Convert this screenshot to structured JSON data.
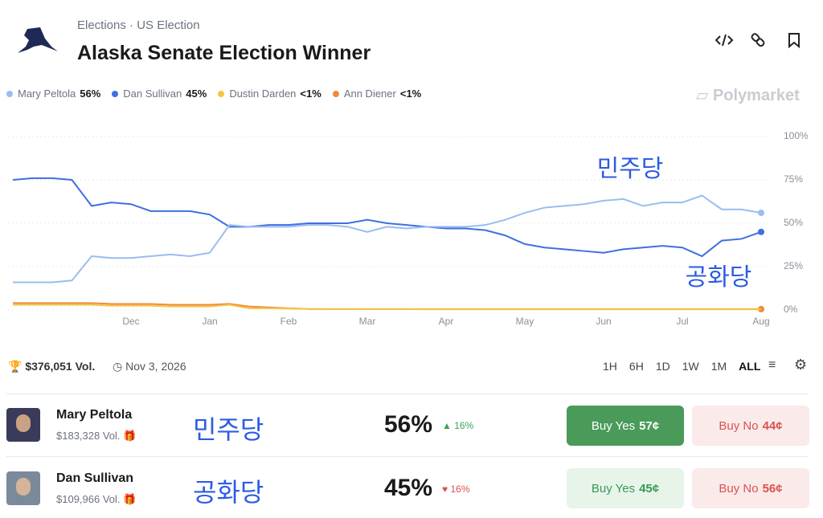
{
  "header": {
    "breadcrumb": [
      "Elections",
      "US Election"
    ],
    "title": "Alaska Senate Election Winner",
    "brand": "Polymarket"
  },
  "chart_data": {
    "type": "line",
    "categories": [
      null,
      null,
      null,
      null,
      null,
      null,
      "Dec",
      null,
      null,
      null,
      "Jan",
      null,
      null,
      null,
      "Feb",
      null,
      null,
      null,
      "Mar",
      null,
      null,
      null,
      "Apr",
      null,
      null,
      null,
      "May",
      null,
      null,
      null,
      "Jun",
      null,
      null,
      null,
      "Jul",
      null,
      null,
      null,
      "Aug"
    ],
    "series": [
      {
        "name": "Mary Peltola",
        "current_label": "56%",
        "color": "#9bbcf0",
        "values": [
          16,
          16,
          16,
          17,
          31,
          30,
          30,
          31,
          32,
          31,
          33,
          49,
          48,
          48,
          48,
          49,
          49,
          48,
          45,
          48,
          47,
          48,
          48,
          48,
          49,
          52,
          56,
          59,
          60,
          61,
          63,
          64,
          60,
          62,
          62,
          66,
          58,
          58,
          56
        ]
      },
      {
        "name": "Dan Sullivan",
        "current_label": "45%",
        "color": "#3f6fe0",
        "values": [
          75,
          76,
          76,
          75,
          60,
          62,
          61,
          57,
          57,
          57,
          55,
          48,
          48,
          49,
          49,
          50,
          50,
          50,
          52,
          50,
          49,
          48,
          47,
          47,
          46,
          43,
          38,
          36,
          35,
          34,
          33,
          35,
          36,
          37,
          36,
          31,
          40,
          41,
          45
        ]
      },
      {
        "name": "Dustin Darden",
        "current_label": "<1%",
        "color": "#f4c542",
        "values": [
          3,
          3,
          3,
          3,
          3,
          2.5,
          2.5,
          2.5,
          2,
          2,
          2,
          3,
          1,
          1,
          0.8,
          0.6,
          0.5,
          0.5,
          0.5,
          0.5,
          0.5,
          0.4,
          0.4,
          0.4,
          0.4,
          0.4,
          0.4,
          0.4,
          0.4,
          0.4,
          0.4,
          0.4,
          0.4,
          0.4,
          0.4,
          0.4,
          0.4,
          0.4,
          0.4
        ]
      },
      {
        "name": "Ann Diener",
        "current_label": "<1%",
        "color": "#ef8a3a",
        "values": [
          4,
          4,
          4,
          4,
          4,
          3.5,
          3.5,
          3.5,
          3,
          3,
          3,
          3.5,
          2,
          1.5,
          1,
          0.6,
          0.5,
          0.5,
          0.5,
          0.5,
          0.5,
          0.5,
          0.5,
          0.5,
          0.5,
          0.5,
          0.5,
          0.5,
          0.5,
          0.5,
          0.5,
          0.5,
          0.5,
          0.5,
          0.5,
          0.5,
          0.5,
          0.5,
          0.5
        ]
      }
    ],
    "ylim": [
      0,
      100
    ],
    "yticks": [
      {
        "value": 0,
        "label": "0%"
      },
      {
        "value": 25,
        "label": "25%"
      },
      {
        "value": 50,
        "label": "50%"
      },
      {
        "value": 75,
        "label": "75%"
      },
      {
        "value": 100,
        "label": "100%"
      }
    ],
    "grid": true,
    "annotations": [
      "민주당",
      "공화당"
    ]
  },
  "stats": {
    "volume": "$376,051 Vol.",
    "end_date": "Nov 3, 2026"
  },
  "time_ranges": [
    "1H",
    "6H",
    "1D",
    "1W",
    "1M",
    "ALL"
  ],
  "outcomes": [
    {
      "name": "Mary Peltola",
      "volume": "$183,328 Vol.",
      "party": "민주당",
      "chance": "56%",
      "change": "16%",
      "buy_yes": "Buy Yes",
      "yes_price": "57¢",
      "buy_no": "Buy No",
      "no_price": "44¢"
    },
    {
      "name": "Dan Sullivan",
      "volume": "$109,966 Vol.",
      "party": "공화당",
      "chance": "45%",
      "change": "16%",
      "buy_yes": "Buy Yes",
      "yes_price": "45¢",
      "buy_no": "Buy No",
      "no_price": "56¢"
    }
  ]
}
